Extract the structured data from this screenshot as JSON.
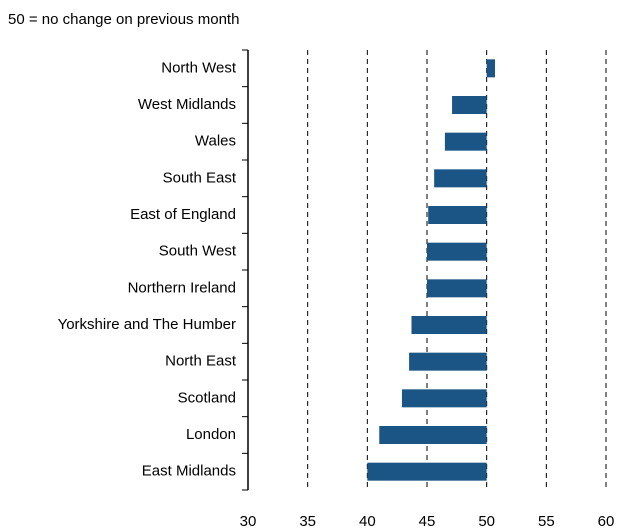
{
  "chart_data": {
    "type": "bar",
    "orientation": "horizontal",
    "subtitle": "50 = no change on previous month",
    "categories": [
      "North West",
      "West Midlands",
      "Wales",
      "South East",
      "East of England",
      "South West",
      "Northern Ireland",
      "Yorkshire and The Humber",
      "North East",
      "Scotland",
      "London",
      "East Midlands"
    ],
    "values": [
      50.7,
      47.1,
      46.5,
      45.6,
      45.1,
      45.0,
      45.0,
      43.7,
      43.5,
      42.9,
      41.0,
      40.0
    ],
    "baseline": 50,
    "color": "#1b5586",
    "xlim": [
      30,
      60
    ],
    "xticks": [
      30,
      35,
      40,
      45,
      50,
      55,
      60
    ],
    "grid": true
  }
}
